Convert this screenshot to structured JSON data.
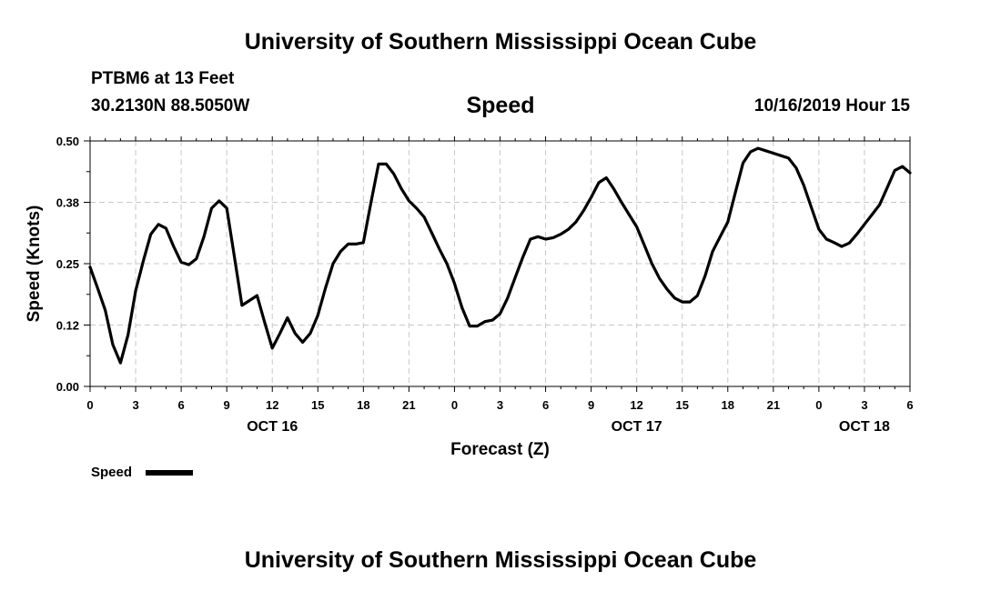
{
  "header": {
    "title": "University of Southern Mississippi Ocean Cube",
    "station": "PTBM6 at 13 Feet",
    "coords": "30.2130N 88.5050W",
    "datetime": "10/16/2019 Hour 15"
  },
  "footer": {
    "title": "University of Southern Mississippi Ocean Cube"
  },
  "colors": {
    "line": "#000000",
    "grid": "#c8c8c8",
    "background": "#ffffff"
  },
  "chart_data": {
    "type": "line",
    "title": "Speed",
    "xlabel": "Forecast (Z)",
    "ylabel": "Speed (Knots)",
    "xlim": [
      0,
      54
    ],
    "ylim": [
      0,
      0.5
    ],
    "yticks": [
      0,
      0.125,
      0.25,
      0.375,
      0.5
    ],
    "ytick_labels": [
      "0.00",
      "0.12",
      "0.25",
      "0.38",
      "0.50"
    ],
    "xticks": [
      0,
      3,
      6,
      9,
      12,
      15,
      18,
      21,
      24,
      27,
      30,
      33,
      36,
      39,
      42,
      45,
      48,
      51,
      54
    ],
    "xtick_labels": [
      "0",
      "3",
      "6",
      "9",
      "12",
      "15",
      "18",
      "21",
      "0",
      "3",
      "6",
      "9",
      "12",
      "15",
      "18",
      "21",
      "0",
      "3",
      "6"
    ],
    "date_labels": [
      {
        "label": "OCT 16",
        "x": 12
      },
      {
        "label": "OCT 17",
        "x": 36
      },
      {
        "label": "OCT 18",
        "x": 51
      }
    ],
    "grid": true,
    "legend": {
      "label": "Speed",
      "position": "bottom-left"
    },
    "series": [
      {
        "name": "Speed",
        "x": [
          0,
          0.5,
          1,
          1.5,
          2,
          2.5,
          3,
          3.5,
          4,
          4.5,
          5,
          5.5,
          6,
          6.5,
          7,
          7.5,
          8,
          8.5,
          9,
          9.5,
          10,
          10.5,
          11,
          11.5,
          12,
          12.5,
          13,
          13.5,
          14,
          14.5,
          15,
          15.5,
          16,
          16.5,
          17,
          17.5,
          18,
          18.5,
          19,
          19.5,
          20,
          20.5,
          21,
          21.5,
          22,
          22.5,
          23,
          23.5,
          24,
          24.5,
          25,
          25.5,
          26,
          26.5,
          27,
          27.5,
          28,
          28.5,
          29,
          29.5,
          30,
          30.5,
          31,
          31.5,
          32,
          32.5,
          33,
          33.5,
          34,
          34.5,
          35,
          35.5,
          36,
          36.5,
          37,
          37.5,
          38,
          38.5,
          39,
          39.5,
          40,
          40.5,
          41,
          41.5,
          42,
          42.5,
          43,
          43.5,
          44,
          44.5,
          45,
          45.5,
          46,
          46.5,
          47,
          47.5,
          48,
          48.5,
          49,
          49.5,
          50,
          50.5,
          51,
          51.5,
          52,
          52.5,
          53,
          53.5,
          54
        ],
        "values": [
          0.243,
          0.2,
          0.155,
          0.085,
          0.048,
          0.105,
          0.195,
          0.255,
          0.31,
          0.33,
          0.322,
          0.285,
          0.253,
          0.248,
          0.26,
          0.305,
          0.363,
          0.378,
          0.363,
          0.265,
          0.165,
          0.175,
          0.185,
          0.13,
          0.078,
          0.108,
          0.14,
          0.108,
          0.09,
          0.108,
          0.145,
          0.2,
          0.25,
          0.275,
          0.29,
          0.29,
          0.293,
          0.375,
          0.453,
          0.453,
          0.433,
          0.403,
          0.378,
          0.363,
          0.345,
          0.313,
          0.28,
          0.25,
          0.21,
          0.16,
          0.123,
          0.123,
          0.132,
          0.135,
          0.148,
          0.18,
          0.222,
          0.263,
          0.3,
          0.305,
          0.3,
          0.303,
          0.31,
          0.32,
          0.335,
          0.358,
          0.385,
          0.415,
          0.425,
          0.402,
          0.375,
          0.35,
          0.325,
          0.288,
          0.25,
          0.22,
          0.198,
          0.18,
          0.172,
          0.172,
          0.185,
          0.225,
          0.275,
          0.305,
          0.335,
          0.395,
          0.455,
          0.478,
          0.485,
          0.48,
          0.475,
          0.47,
          0.465,
          0.445,
          0.41,
          0.365,
          0.32,
          0.3,
          0.293,
          0.285,
          0.292,
          0.31,
          0.33,
          0.35,
          0.37,
          0.405,
          0.44,
          0.448,
          0.435
        ]
      }
    ]
  }
}
